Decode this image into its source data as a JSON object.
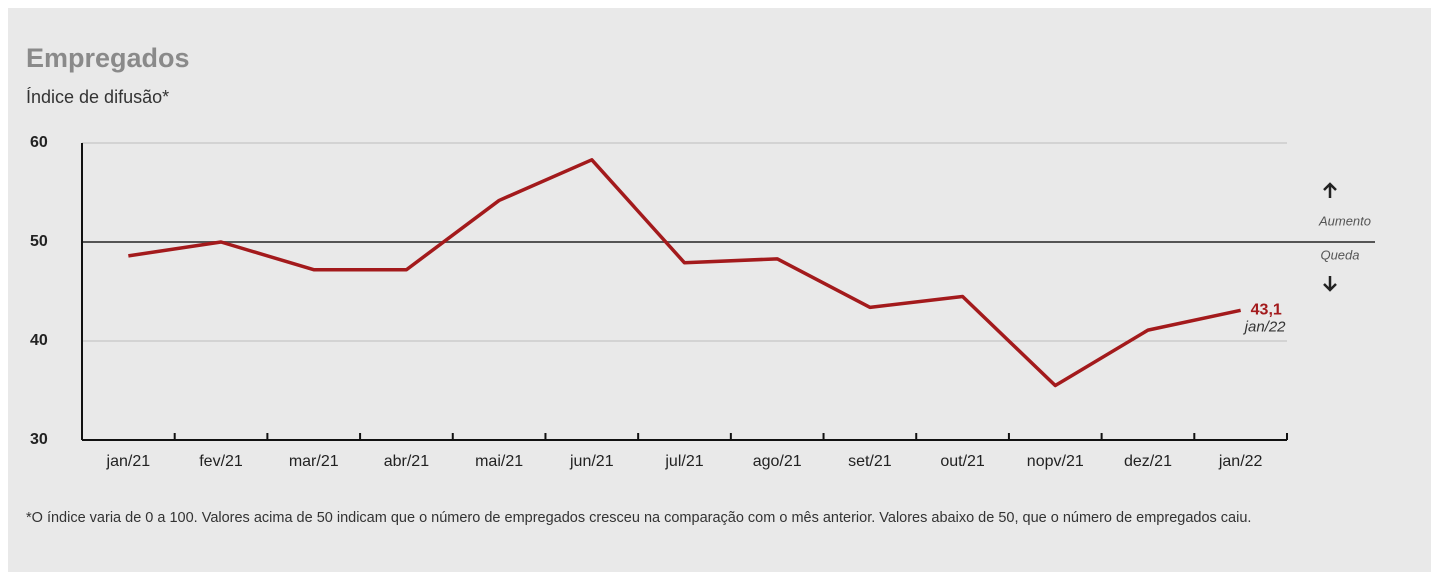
{
  "chart_data": {
    "type": "line",
    "title": "Empregados",
    "subtitle": "Índice de difusão*",
    "categories": [
      "jan/21",
      "fev/21",
      "mar/21",
      "abr/21",
      "mai/21",
      "jun/21",
      "jul/21",
      "ago/21",
      "set/21",
      "out/21",
      "nopv/21",
      "dez/21",
      "jan/22"
    ],
    "series": [
      {
        "color": "#a31a1c",
        "values": [
          48.6,
          50.0,
          47.2,
          47.2,
          54.2,
          58.3,
          47.9,
          48.3,
          43.4,
          44.5,
          35.5,
          41.1,
          43.1
        ],
        "value_labels": [
          null,
          null,
          null,
          null,
          null,
          null,
          null,
          null,
          null,
          null,
          null,
          null,
          "43,1"
        ]
      }
    ],
    "ylim": [
      30,
      60
    ],
    "yticks": [
      30,
      40,
      50,
      60
    ],
    "grid": true,
    "reference": 50,
    "annotations": {
      "above": "Aumento",
      "below": "Queda"
    },
    "footnote": "*O índice varia de 0 a 100. Valores acima de 50 indicam que o número de empregados cresceu na comparação com o mês anterior. Valores abaixo de 50, que o número de empregados caiu."
  }
}
